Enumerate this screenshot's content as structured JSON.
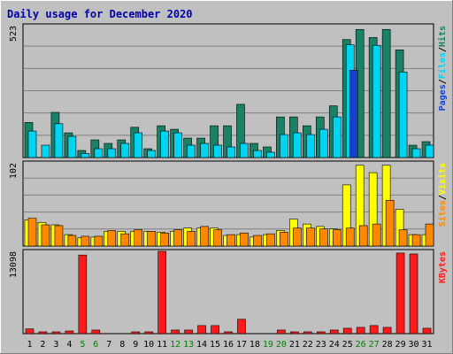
{
  "chart_data": {
    "type": "bar",
    "title": "Daily usage for December 2020",
    "categories": [
      "1",
      "2",
      "3",
      "4",
      "5",
      "6",
      "7",
      "8",
      "9",
      "10",
      "11",
      "12",
      "13",
      "14",
      "15",
      "16",
      "17",
      "18",
      "19",
      "20",
      "21",
      "22",
      "23",
      "24",
      "25",
      "26",
      "27",
      "28",
      "29",
      "30",
      "31"
    ],
    "weekend_days": [
      "5",
      "6",
      "12",
      "13",
      "19",
      "20",
      "26",
      "27"
    ],
    "panels": [
      {
        "id": "top",
        "max_label": "523",
        "ymax": 523,
        "legend": [
          "Pages",
          "Files",
          "Hits"
        ],
        "series": [
          {
            "name": "Hits",
            "color": "#1a8066",
            "values": [
              139,
              0,
              179,
              98,
              28,
              70,
              56,
              70,
              120,
              35,
              126,
              112,
              77,
              77,
              126,
              126,
              211,
              56,
              42,
              161,
              161,
              126,
              161,
              205,
              468,
              508,
              476,
              508,
              427,
              49,
              63
            ]
          },
          {
            "name": "Files",
            "color": "#00d4f0",
            "values": [
              105,
              49,
              134,
              84,
              16,
              35,
              35,
              56,
              98,
              28,
              105,
              98,
              49,
              56,
              49,
              42,
              56,
              28,
              21,
              91,
              98,
              91,
              112,
              161,
              447,
              0,
              445,
              0,
              339,
              35,
              49
            ]
          },
          {
            "name": "Pages",
            "color": "#1a3fcf",
            "values": [
              0,
              0,
              0,
              0,
              0,
              0,
              0,
              0,
              0,
              0,
              0,
              0,
              0,
              0,
              0,
              0,
              0,
              0,
              0,
              0,
              0,
              0,
              0,
              0,
              346,
              0,
              0,
              0,
              0,
              0,
              0
            ]
          }
        ]
      },
      {
        "id": "middle",
        "max_label": "102",
        "ymax": 102,
        "legend": [
          "Sites",
          "Visits"
        ],
        "series": [
          {
            "name": "Visits",
            "color": "#ffff00",
            "values": [
              32,
              29,
              26,
              14,
              10,
              11,
              18,
              18,
              18,
              18,
              17,
              18,
              22,
              22,
              22,
              13,
              14,
              11,
              14,
              19,
              33,
              27,
              24,
              21,
              75,
              99,
              90,
              99,
              45,
              14,
              14
            ]
          },
          {
            "name": "Sites",
            "color": "#ff8800",
            "values": [
              34,
              26,
              25,
              13,
              12,
              12,
              19,
              15,
              20,
              18,
              16,
              20,
              18,
              24,
              20,
              14,
              16,
              13,
              15,
              17,
              22,
              22,
              21,
              20,
              22,
              25,
              27,
              56,
              20,
              14,
              27
            ]
          }
        ]
      },
      {
        "id": "bottom",
        "max_label": "13098",
        "ymax": 13098,
        "legend": [
          "KBytes"
        ],
        "series": [
          {
            "name": "KBytes",
            "color": "#ff1a1a",
            "values": [
              757,
              285,
              285,
              421,
              12508,
              571,
              0,
              0,
              285,
              285,
              13099,
              571,
              571,
              1285,
              1285,
              285,
              2285,
              0,
              0,
              571,
              285,
              285,
              285,
              571,
              857,
              1000,
              1285,
              1000,
              12825,
              12682,
              857
            ]
          }
        ]
      }
    ]
  }
}
